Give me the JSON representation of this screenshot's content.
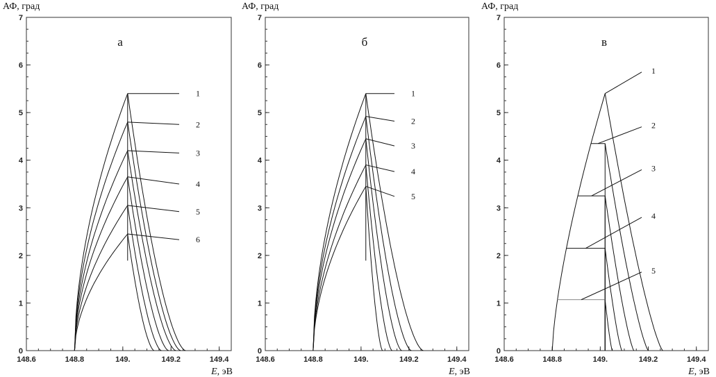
{
  "chart_data": [
    {
      "type": "line",
      "panel_label": "а",
      "ylabel": "АФ,  град",
      "xlabel_italic": "E",
      "xlabel_rest": ",  эВ",
      "xticks": [
        "148.6",
        "148.8",
        "149.",
        "149.2",
        "149.4"
      ],
      "yticks": [
        "0",
        "1",
        "2",
        "3",
        "4",
        "5",
        "6",
        "7"
      ],
      "xlim": [
        148.6,
        149.45
      ],
      "ylim": [
        0,
        7
      ],
      "series": [
        {
          "name": "1",
          "peak": 5.4,
          "end_x": 149.26
        },
        {
          "name": "2",
          "peak": 4.8,
          "end_x": 149.24
        },
        {
          "name": "3",
          "peak": 4.2,
          "end_x": 149.22
        },
        {
          "name": "4",
          "peak": 3.65,
          "end_x": 149.19
        },
        {
          "name": "5",
          "peak": 3.05,
          "end_x": 149.16
        },
        {
          "name": "6",
          "peak": 2.45,
          "end_x": 149.13
        }
      ],
      "label_y": [
        5.4,
        4.75,
        4.15,
        3.5,
        2.92,
        2.33
      ]
    },
    {
      "type": "line",
      "panel_label": "б",
      "ylabel": "АФ,  град",
      "xlabel_italic": "E",
      "xlabel_rest": ",  эВ",
      "xticks": [
        "148.6",
        "148.8",
        "149.",
        "149.2",
        "149.4"
      ],
      "yticks": [
        "0",
        "1",
        "2",
        "3",
        "4",
        "5",
        "6",
        "7"
      ],
      "xlim": [
        148.6,
        149.45
      ],
      "ylim": [
        0,
        7
      ],
      "series": [
        {
          "name": "1",
          "peak": 5.4,
          "end_x": 149.26
        },
        {
          "name": "2",
          "peak": 4.92,
          "end_x": 149.21
        },
        {
          "name": "3",
          "peak": 4.45,
          "end_x": 149.17
        },
        {
          "name": "4",
          "peak": 3.9,
          "end_x": 149.13
        },
        {
          "name": "5",
          "peak": 3.45,
          "end_x": 149.09
        }
      ],
      "label_y": [
        5.4,
        4.82,
        4.3,
        3.76,
        3.24
      ]
    },
    {
      "type": "line",
      "panel_label": "в",
      "ylabel": "АФ,  град",
      "xlabel_italic": "E",
      "xlabel_rest": ",  эВ",
      "xticks": [
        "148.6",
        "148.8",
        "149.",
        "149.2",
        "149.4"
      ],
      "yticks": [
        "0",
        "1",
        "2",
        "3",
        "4",
        "5",
        "6",
        "7"
      ],
      "xlim": [
        148.6,
        149.45
      ],
      "ylim": [
        0,
        7
      ],
      "envelope_peak": 5.4,
      "series": [
        {
          "name": "1",
          "level": 5.4,
          "end_x": 149.26
        },
        {
          "name": "2",
          "level": 4.35,
          "end_x": 149.2
        },
        {
          "name": "3",
          "level": 3.25,
          "end_x": 149.14
        },
        {
          "name": "4",
          "level": 2.15,
          "end_x": 149.09
        },
        {
          "name": "5",
          "level": 1.07,
          "end_x": 149.05
        }
      ],
      "label_y": [
        5.85,
        4.7,
        3.8,
        2.8,
        1.65
      ]
    }
  ]
}
